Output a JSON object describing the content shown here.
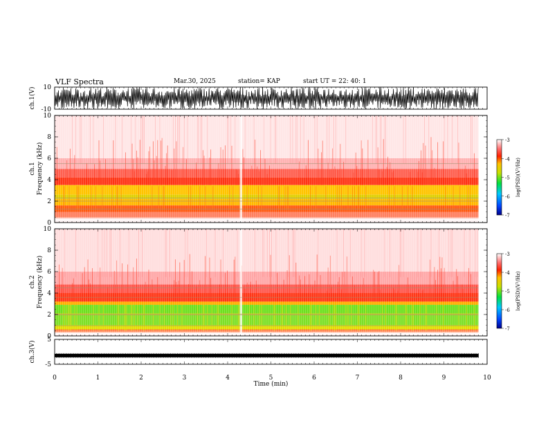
{
  "header": {
    "title": "VLF Spectra",
    "date": "Mar.30, 2025",
    "station": "station= KAP",
    "start": "start  UT  =   22: 40: 1"
  },
  "chart_data": [
    {
      "type": "line",
      "panel": "ch1-waveform",
      "ylabel": "ch.1(V)",
      "ylim": [
        -10,
        10
      ],
      "yticks": [
        "10",
        "-10"
      ],
      "xlim": [
        0,
        10
      ],
      "x_end": 9.8,
      "description_series": "dense noise waveform"
    },
    {
      "type": "heatmap",
      "panel": "ch1-spectrogram",
      "ylabel_channel": "ch.1",
      "ylabel": "Frequency  (kHz)",
      "ylim": [
        0,
        10
      ],
      "yticks": [
        "0",
        "2",
        "4",
        "6",
        "8",
        "10"
      ],
      "xlim": [
        0,
        10
      ],
      "x_end": 9.8
    },
    {
      "type": "heatmap",
      "panel": "ch2-spectrogram",
      "ylabel_channel": "ch.2",
      "ylabel": "Frequency  (kHz)",
      "ylim": [
        0,
        10
      ],
      "yticks": [
        "0",
        "2",
        "4",
        "6",
        "8",
        "10"
      ],
      "xlim": [
        0,
        10
      ],
      "x_end": 9.8
    },
    {
      "type": "line",
      "panel": "ch3-waveform",
      "ylabel": "ch.3(V)",
      "ylim": [
        -5,
        5
      ],
      "yticks": [
        "5",
        "-5"
      ],
      "xlim": [
        0,
        10
      ],
      "x_end": 9.8,
      "level": -1.5
    }
  ],
  "xaxis": {
    "label": "Time  (min)",
    "ticks": [
      "0",
      "1",
      "2",
      "3",
      "4",
      "5",
      "6",
      "7",
      "8",
      "9",
      "10"
    ]
  },
  "colorbar": {
    "label": "log(PSD)(V²/Hz)",
    "ticks": [
      "-3",
      "-4",
      "-5",
      "-6",
      "-7"
    ],
    "range": [
      -7,
      -3
    ]
  }
}
